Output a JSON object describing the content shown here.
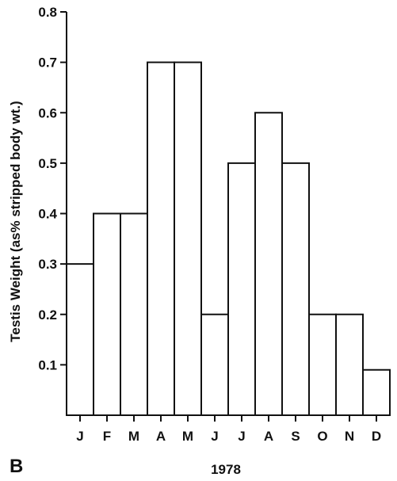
{
  "panel_label": "B",
  "chart_data": {
    "type": "bar",
    "categories": [
      "J",
      "F",
      "M",
      "A",
      "M",
      "J",
      "J",
      "A",
      "S",
      "O",
      "N",
      "D"
    ],
    "values": [
      0.3,
      0.4,
      0.4,
      0.7,
      0.7,
      0.2,
      0.5,
      0.6,
      0.5,
      0.2,
      0.2,
      0.09
    ],
    "title": "",
    "xlabel": "1978",
    "ylabel": "Testis Weight (as% stripped body wt.)",
    "ylim": [
      0,
      0.8
    ],
    "yticks": [
      "0.1",
      "0.2",
      "0.3",
      "0.4",
      "0.5",
      "0.6",
      "0.7",
      "0.8"
    ],
    "grid": false,
    "legend": "none",
    "bar_fill": "#ffffff",
    "bar_stroke": "#111111"
  }
}
